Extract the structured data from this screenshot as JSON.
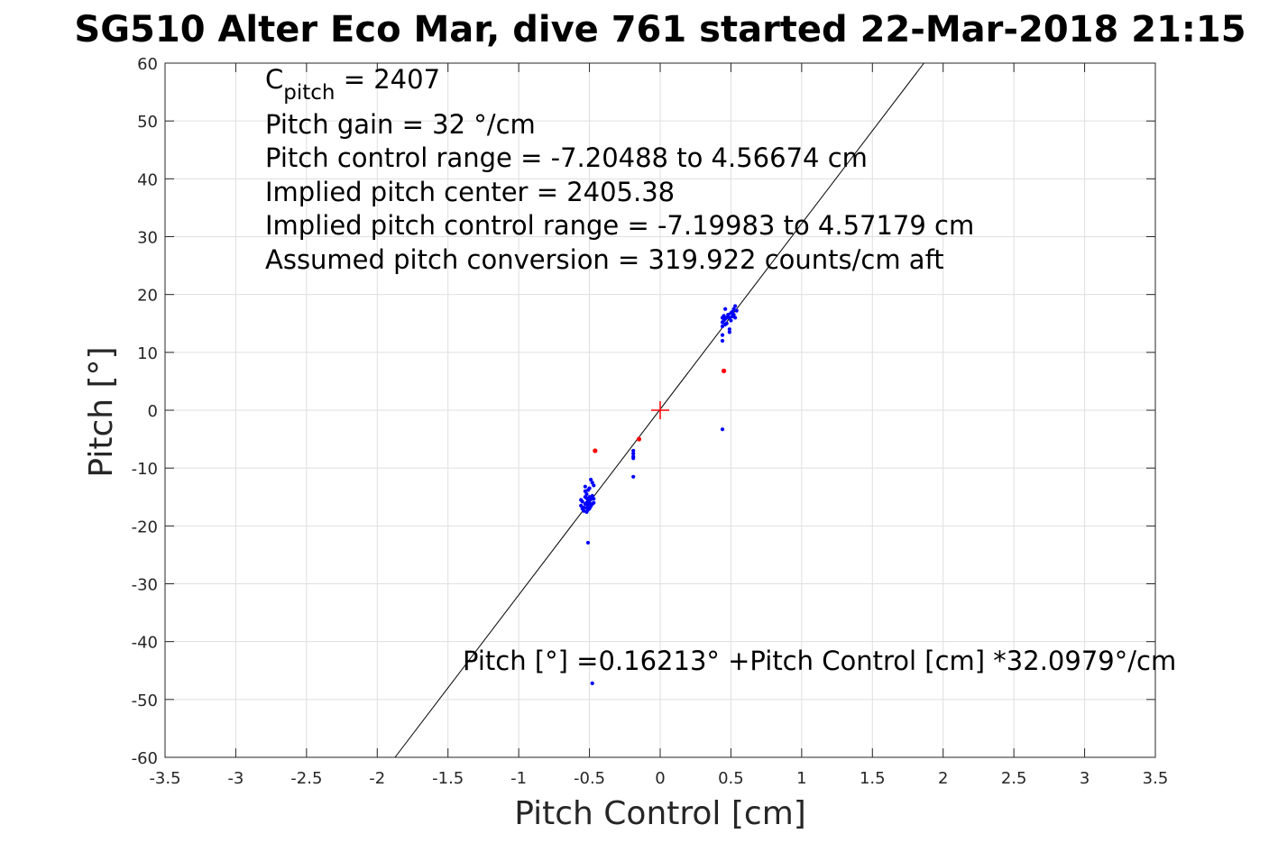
{
  "chart_data": {
    "type": "scatter",
    "title": "SG510 Alter Eco Mar, dive 761 started 22-Mar-2018 21:15",
    "xlabel": "Pitch Control [cm]",
    "ylabel": "Pitch [°]",
    "xlim": [
      -3.5,
      3.5
    ],
    "ylim": [
      -60,
      60
    ],
    "xticks": [
      -3.5,
      -3,
      -2.5,
      -2,
      -1.5,
      -1,
      -0.5,
      0,
      0.5,
      1,
      1.5,
      2,
      2.5,
      3,
      3.5
    ],
    "xtick_labels": [
      "-3.5",
      "-3",
      "-2.5",
      "-2",
      "-1.5",
      "-1",
      "-0.5",
      "0",
      "0.5",
      "1",
      "1.5",
      "2",
      "2.5",
      "3",
      "3.5"
    ],
    "yticks": [
      -60,
      -50,
      -40,
      -30,
      -20,
      -10,
      0,
      10,
      20,
      30,
      40,
      50,
      60
    ],
    "ytick_labels": [
      "-60",
      "-50",
      "-40",
      "-30",
      "-20",
      "-10",
      "0",
      "10",
      "20",
      "30",
      "40",
      "50",
      "60"
    ],
    "grid": true,
    "annotations": {
      "c_pitch_prefix": "C",
      "c_pitch_sub": "pitch",
      "c_pitch_value": " = 2407",
      "lines": [
        "Pitch gain = 32 °/cm",
        "Pitch control range = -7.20488 to 4.56674 cm",
        "Implied pitch center = 2405.38",
        "Implied pitch control range = -7.19983 to 4.57179 cm",
        "Assumed pitch conversion = 319.922 counts/cm aft"
      ],
      "fit_equation": "Pitch [°] =0.16213° +Pitch Control [cm] *32.0979°/cm"
    },
    "fit_line": {
      "intercept": 0.16213,
      "slope": 32.0979
    },
    "center_marker": {
      "x": 0,
      "y": 0
    },
    "series": [
      {
        "color": "#0000ff",
        "points": [
          [
            -0.56,
            -15.5
          ],
          [
            -0.56,
            -16.5
          ],
          [
            -0.55,
            -17.0
          ],
          [
            -0.55,
            -15.8
          ],
          [
            -0.54,
            -17.4
          ],
          [
            -0.54,
            -16.8
          ],
          [
            -0.53,
            -16.2
          ],
          [
            -0.53,
            -15.0
          ],
          [
            -0.53,
            -14.0
          ],
          [
            -0.53,
            -13.2
          ],
          [
            -0.52,
            -17.6
          ],
          [
            -0.52,
            -16.9
          ],
          [
            -0.52,
            -16.0
          ],
          [
            -0.52,
            -15.2
          ],
          [
            -0.52,
            -14.5
          ],
          [
            -0.51,
            -17.2
          ],
          [
            -0.51,
            -16.4
          ],
          [
            -0.51,
            -15.6
          ],
          [
            -0.51,
            -13.8
          ],
          [
            -0.5,
            -17.0
          ],
          [
            -0.5,
            -16.0
          ],
          [
            -0.5,
            -15.0
          ],
          [
            -0.5,
            -13.5
          ],
          [
            -0.49,
            -16.6
          ],
          [
            -0.49,
            -15.4
          ],
          [
            -0.49,
            -12.0
          ],
          [
            -0.48,
            -16.2
          ],
          [
            -0.48,
            -14.8
          ],
          [
            -0.48,
            -12.5
          ],
          [
            -0.47,
            -16.0
          ],
          [
            -0.47,
            -15.3
          ],
          [
            -0.47,
            -13.0
          ],
          [
            -0.51,
            -22.9
          ],
          [
            -0.48,
            -47.2
          ],
          [
            -0.19,
            -7.0
          ],
          [
            -0.19,
            -7.5
          ],
          [
            -0.19,
            -8.0
          ],
          [
            -0.19,
            -8.3
          ],
          [
            -0.19,
            -11.5
          ],
          [
            0.44,
            -3.3
          ],
          [
            0.44,
            12.0
          ],
          [
            0.44,
            13.0
          ],
          [
            0.44,
            14.5
          ],
          [
            0.44,
            15.2
          ],
          [
            0.44,
            16.0
          ],
          [
            0.45,
            15.5
          ],
          [
            0.45,
            16.3
          ],
          [
            0.46,
            14.8
          ],
          [
            0.46,
            15.8
          ],
          [
            0.46,
            17.5
          ],
          [
            0.47,
            15.0
          ],
          [
            0.47,
            16.0
          ],
          [
            0.48,
            16.5
          ],
          [
            0.49,
            13.5
          ],
          [
            0.49,
            14.0
          ],
          [
            0.49,
            16.0
          ],
          [
            0.5,
            16.8
          ],
          [
            0.5,
            15.5
          ],
          [
            0.51,
            16.2
          ],
          [
            0.51,
            17.0
          ],
          [
            0.52,
            16.5
          ],
          [
            0.52,
            17.5
          ],
          [
            0.53,
            16.0
          ],
          [
            0.53,
            18.0
          ],
          [
            0.54,
            17.2
          ]
        ]
      },
      {
        "color": "#ff0000",
        "points": [
          [
            -0.46,
            -7.0
          ],
          [
            -0.15,
            -5.0
          ],
          [
            0.45,
            6.8
          ]
        ]
      }
    ]
  }
}
